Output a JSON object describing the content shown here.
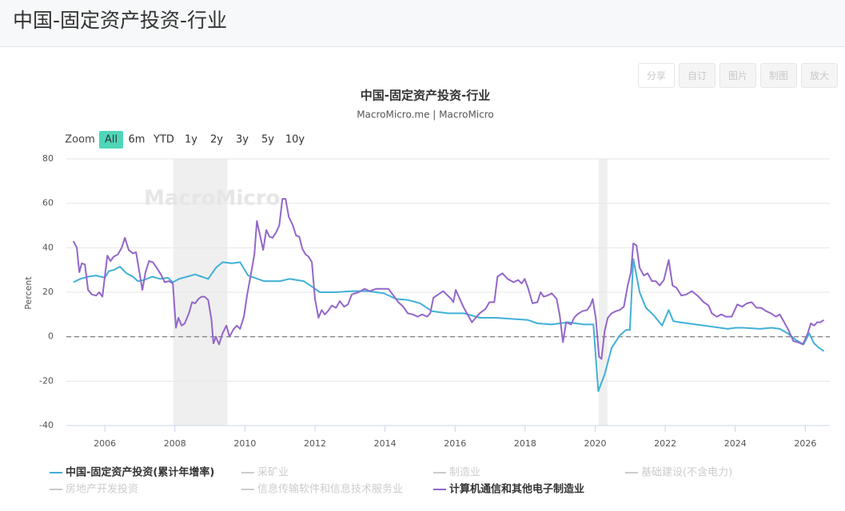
{
  "header": {
    "title": "中国-固定资产投资-行业"
  },
  "toolbar": [
    "分享",
    "自订",
    "图片",
    "制图",
    "放大"
  ],
  "chart_data": {
    "type": "line",
    "title": "中国-固定资产投资-行业",
    "subtitle": "MacroMicro.me | MacroMicro",
    "watermark": "MacroMicro",
    "zoom_label": "Zoom",
    "zoom_buttons": [
      "All",
      "6m",
      "YTD",
      "1y",
      "2y",
      "3y",
      "5y",
      "10y"
    ],
    "zoom_selected": 0,
    "y_label": "Percent",
    "xlim": [
      2004.9,
      2026.7
    ],
    "xticks": [
      2006,
      2008,
      2010,
      2012,
      2014,
      2016,
      2018,
      2020,
      2022,
      2024,
      2026
    ],
    "ylim": [
      -40,
      80
    ],
    "yticks": [
      -40,
      -20,
      0,
      20,
      40,
      60,
      80
    ],
    "grid": true,
    "reference_line": 0,
    "bands": [
      [
        2007.95,
        2009.5
      ],
      [
        2020.1,
        2020.35
      ]
    ],
    "series": [
      {
        "name": "中国-固定资产投资(累计年增率)",
        "color": "#41b0d6",
        "x": [
          2005.1,
          2005.3,
          2005.52,
          2005.75,
          2006.0,
          2006.11,
          2006.25,
          2006.43,
          2006.62,
          2006.8,
          2006.94,
          2007.12,
          2007.35,
          2007.58,
          2007.8,
          2007.94,
          2008.12,
          2008.35,
          2008.58,
          2008.76,
          2008.95,
          2009.17,
          2009.36,
          2009.63,
          2009.86,
          2010.09,
          2010.54,
          2011.0,
          2011.27,
          2011.68,
          2011.96,
          2012.14,
          2012.6,
          2013.05,
          2013.51,
          2013.97,
          2014.31,
          2014.65,
          2015.0,
          2015.34,
          2015.79,
          2016.25,
          2016.71,
          2017.16,
          2017.62,
          2018.08,
          2018.35,
          2018.76,
          2019.22,
          2019.68,
          2019.95,
          2020.09,
          2020.27,
          2020.47,
          2020.7,
          2020.88,
          2020.99,
          2021.09,
          2021.27,
          2021.45,
          2021.68,
          2021.91,
          2022.1,
          2022.23,
          2022.42,
          2022.87,
          2023.33,
          2023.79,
          2024.01,
          2024.24,
          2024.7,
          2025.04,
          2025.27,
          2025.5,
          2025.73,
          2025.95,
          2026.11,
          2026.25,
          2026.39,
          2026.53
        ],
        "values": [
          24.5,
          26,
          27,
          27.5,
          26.5,
          29.5,
          30,
          31.5,
          28.5,
          27,
          25,
          25.5,
          27,
          26,
          26.5,
          24.5,
          26,
          27,
          28,
          27,
          26,
          31,
          33.5,
          33,
          33.5,
          27.5,
          25,
          25,
          26,
          25,
          22,
          20,
          20,
          20.5,
          20.5,
          19.5,
          17,
          16.5,
          15,
          11.5,
          10.5,
          10.5,
          8.5,
          8.5,
          8,
          7.5,
          6,
          5.5,
          6.5,
          5.5,
          5.5,
          -24.5,
          -17,
          -5,
          0.5,
          3,
          3,
          35,
          20,
          13,
          9.5,
          5,
          12,
          7,
          6.5,
          5.5,
          4.5,
          3.5,
          4,
          4,
          3.5,
          4,
          3.5,
          1.5,
          -1.5,
          -3.5,
          1.5,
          -3,
          -5,
          -6.5
        ]
      },
      {
        "name": "计算机通信和其他电子制造业",
        "color": "#9366c9",
        "x": [
          2005.1,
          2005.2,
          2005.27,
          2005.34,
          2005.43,
          2005.52,
          2005.63,
          2005.75,
          2005.84,
          2005.93,
          2006.07,
          2006.16,
          2006.25,
          2006.37,
          2006.48,
          2006.57,
          2006.68,
          2006.8,
          2006.89,
          2007.07,
          2007.16,
          2007.26,
          2007.37,
          2007.48,
          2007.6,
          2007.71,
          2007.83,
          2007.94,
          2008.03,
          2008.1,
          2008.19,
          2008.28,
          2008.4,
          2008.49,
          2008.58,
          2008.67,
          2008.76,
          2008.85,
          2008.95,
          2009.04,
          2009.1,
          2009.17,
          2009.26,
          2009.36,
          2009.47,
          2009.56,
          2009.68,
          2009.77,
          2009.86,
          2009.97,
          2010.06,
          2010.18,
          2010.27,
          2010.34,
          2010.43,
          2010.52,
          2010.61,
          2010.7,
          2010.79,
          2010.89,
          2010.98,
          2011.07,
          2011.16,
          2011.25,
          2011.37,
          2011.46,
          2011.55,
          2011.64,
          2011.73,
          2011.82,
          2011.91,
          2012.0,
          2012.1,
          2012.19,
          2012.28,
          2012.37,
          2012.48,
          2012.6,
          2012.71,
          2012.83,
          2012.94,
          2013.05,
          2013.24,
          2013.42,
          2013.56,
          2013.74,
          2013.92,
          2014.1,
          2014.24,
          2014.38,
          2014.52,
          2014.65,
          2014.79,
          2014.93,
          2015.06,
          2015.2,
          2015.29,
          2015.38,
          2015.52,
          2015.66,
          2015.79,
          2015.89,
          2015.95,
          2016.02,
          2016.25,
          2016.48,
          2016.7,
          2016.87,
          2016.98,
          2017.12,
          2017.21,
          2017.35,
          2017.5,
          2017.67,
          2017.8,
          2017.9,
          2017.99,
          2018.08,
          2018.21,
          2018.35,
          2018.44,
          2018.53,
          2018.63,
          2018.76,
          2018.9,
          2018.99,
          2019.08,
          2019.17,
          2019.31,
          2019.4,
          2019.49,
          2019.63,
          2019.77,
          2019.86,
          2019.93,
          2020.02,
          2020.11,
          2020.18,
          2020.27,
          2020.36,
          2020.47,
          2020.59,
          2020.7,
          2020.82,
          2020.93,
          2021.02,
          2021.09,
          2021.18,
          2021.27,
          2021.39,
          2021.5,
          2021.62,
          2021.73,
          2021.84,
          2021.96,
          2022.1,
          2022.21,
          2022.32,
          2022.46,
          2022.6,
          2022.76,
          2022.92,
          2023.1,
          2023.24,
          2023.33,
          2023.47,
          2023.6,
          2023.74,
          2023.9,
          2024.06,
          2024.2,
          2024.33,
          2024.47,
          2024.61,
          2024.74,
          2024.88,
          2025.02,
          2025.16,
          2025.27,
          2025.38,
          2025.52,
          2025.66,
          2025.79,
          2025.93,
          2026.07,
          2026.16,
          2026.25,
          2026.34,
          2026.43,
          2026.53
        ],
        "values": [
          43,
          40,
          29,
          33,
          32.5,
          21,
          19,
          18.5,
          20,
          18,
          36.5,
          34,
          36,
          37,
          40,
          44.5,
          39,
          37.5,
          38,
          21,
          29,
          34,
          33.5,
          31,
          28,
          24.5,
          25,
          24,
          4,
          8.5,
          5,
          6,
          10.5,
          15.5,
          15,
          17,
          18,
          18,
          16.5,
          8,
          -3,
          0,
          -3.5,
          1.5,
          5,
          0,
          3.5,
          5,
          3.5,
          9,
          18.5,
          29,
          37,
          52,
          45.5,
          39,
          48,
          45,
          44.5,
          47,
          50,
          62,
          62,
          54,
          50,
          45.5,
          45,
          39.5,
          37,
          36,
          33.5,
          17,
          8.5,
          12,
          10,
          11.5,
          14,
          13,
          16,
          13.5,
          14.5,
          19,
          20,
          21.5,
          20.5,
          21.5,
          21.5,
          21.5,
          18.5,
          15.5,
          13.5,
          10.5,
          10,
          9,
          10,
          9,
          10.5,
          17.5,
          19,
          20.5,
          18.5,
          17,
          15.5,
          21,
          13,
          6.5,
          10.5,
          12.5,
          15.5,
          15.5,
          27,
          28.5,
          26,
          24.5,
          25.5,
          24,
          26,
          22,
          15,
          15.5,
          20,
          18,
          18.5,
          19.5,
          17,
          9.5,
          -2.5,
          6.5,
          5.5,
          8.5,
          10,
          11.5,
          12,
          14,
          17,
          8,
          -9,
          -10,
          2.5,
          8.5,
          10.5,
          11.5,
          12,
          13.5,
          23,
          29,
          42,
          41,
          31,
          27.5,
          28.5,
          25,
          25,
          23,
          25.5,
          34.5,
          23,
          22,
          18.5,
          19,
          20.5,
          18.5,
          15.5,
          14,
          10.5,
          9,
          10,
          9,
          9,
          14.5,
          13.5,
          15,
          15.5,
          13,
          13,
          11.5,
          10.5,
          9,
          10,
          7,
          3,
          -2,
          -2.5,
          -3.5,
          1.5,
          6,
          5,
          6.5,
          6.5,
          7.5
        ]
      }
    ],
    "inactive_legend": [
      "采矿业",
      "制造业",
      "基础建设(不含电力)",
      "房地产开发投资",
      "信息传输软件和信息技术服务业"
    ],
    "inactive_color": "#cccccc"
  }
}
